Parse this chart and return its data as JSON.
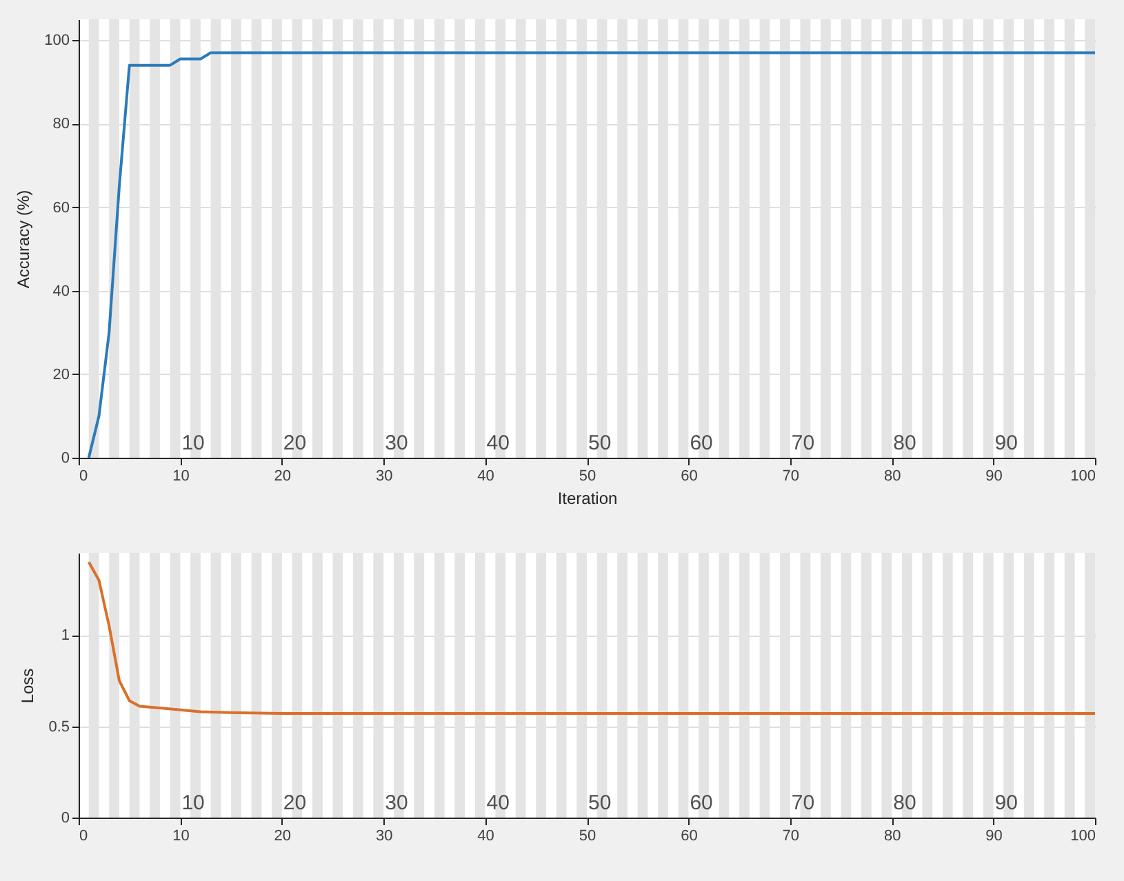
{
  "chart_data": [
    {
      "type": "line",
      "xlabel": "Iteration",
      "ylabel": "Accuracy (%)",
      "xlim": [
        0,
        100
      ],
      "xticks": [
        0,
        10,
        20,
        30,
        40,
        50,
        60,
        70,
        80,
        90,
        100
      ],
      "ylim": [
        0,
        105
      ],
      "yticks": [
        0,
        20,
        40,
        60,
        80,
        100
      ],
      "grid": "y",
      "series": [
        {
          "color": "#2b7bba",
          "x": [
            1,
            2,
            3,
            4,
            5,
            6,
            7,
            8,
            9,
            10,
            11,
            12,
            13,
            20,
            40,
            60,
            80,
            100
          ],
          "values": [
            0,
            10,
            30,
            65,
            94,
            94,
            94,
            94,
            94,
            95.5,
            95.5,
            95.5,
            97,
            97,
            97,
            97,
            97,
            97
          ]
        }
      ],
      "annotations": [
        {
          "text": "10",
          "x": 10,
          "y": 0
        },
        {
          "text": "20",
          "x": 20,
          "y": 0
        },
        {
          "text": "30",
          "x": 30,
          "y": 0
        },
        {
          "text": "40",
          "x": 40,
          "y": 0
        },
        {
          "text": "50",
          "x": 50,
          "y": 0
        },
        {
          "text": "60",
          "x": 60,
          "y": 0
        },
        {
          "text": "70",
          "x": 70,
          "y": 0
        },
        {
          "text": "80",
          "x": 80,
          "y": 0
        },
        {
          "text": "90",
          "x": 90,
          "y": 0
        }
      ],
      "bands": [
        {
          "axis": "x",
          "from": 1,
          "to": 2,
          "color": "#e4e4e4"
        },
        {
          "axis": "x",
          "from": 3,
          "to": 4,
          "color": "#e4e4e4"
        },
        {
          "axis": "x",
          "from": 5,
          "to": 6,
          "color": "#e4e4e4"
        },
        {
          "axis": "x",
          "from": 7,
          "to": 8,
          "color": "#e4e4e4"
        },
        {
          "axis": "x",
          "from": 9,
          "to": 10,
          "color": "#e4e4e4"
        },
        {
          "axis": "x",
          "from": 11,
          "to": 12,
          "color": "#e4e4e4"
        },
        {
          "axis": "x",
          "from": 13,
          "to": 14,
          "color": "#e4e4e4"
        },
        {
          "axis": "x",
          "from": 15,
          "to": 16,
          "color": "#e4e4e4"
        },
        {
          "axis": "x",
          "from": 17,
          "to": 18,
          "color": "#e4e4e4"
        },
        {
          "axis": "x",
          "from": 19,
          "to": 20,
          "color": "#e4e4e4"
        },
        {
          "axis": "x",
          "from": 21,
          "to": 22,
          "color": "#e4e4e4"
        },
        {
          "axis": "x",
          "from": 23,
          "to": 24,
          "color": "#e4e4e4"
        },
        {
          "axis": "x",
          "from": 25,
          "to": 26,
          "color": "#e4e4e4"
        },
        {
          "axis": "x",
          "from": 27,
          "to": 28,
          "color": "#e4e4e4"
        },
        {
          "axis": "x",
          "from": 29,
          "to": 30,
          "color": "#e4e4e4"
        },
        {
          "axis": "x",
          "from": 31,
          "to": 32,
          "color": "#e4e4e4"
        },
        {
          "axis": "x",
          "from": 33,
          "to": 34,
          "color": "#e4e4e4"
        },
        {
          "axis": "x",
          "from": 35,
          "to": 36,
          "color": "#e4e4e4"
        },
        {
          "axis": "x",
          "from": 37,
          "to": 38,
          "color": "#e4e4e4"
        },
        {
          "axis": "x",
          "from": 39,
          "to": 40,
          "color": "#e4e4e4"
        },
        {
          "axis": "x",
          "from": 41,
          "to": 42,
          "color": "#e4e4e4"
        },
        {
          "axis": "x",
          "from": 43,
          "to": 44,
          "color": "#e4e4e4"
        },
        {
          "axis": "x",
          "from": 45,
          "to": 46,
          "color": "#e4e4e4"
        },
        {
          "axis": "x",
          "from": 47,
          "to": 48,
          "color": "#e4e4e4"
        },
        {
          "axis": "x",
          "from": 49,
          "to": 50,
          "color": "#e4e4e4"
        },
        {
          "axis": "x",
          "from": 51,
          "to": 52,
          "color": "#e4e4e4"
        },
        {
          "axis": "x",
          "from": 53,
          "to": 54,
          "color": "#e4e4e4"
        },
        {
          "axis": "x",
          "from": 55,
          "to": 56,
          "color": "#e4e4e4"
        },
        {
          "axis": "x",
          "from": 57,
          "to": 58,
          "color": "#e4e4e4"
        },
        {
          "axis": "x",
          "from": 59,
          "to": 60,
          "color": "#e4e4e4"
        },
        {
          "axis": "x",
          "from": 61,
          "to": 62,
          "color": "#e4e4e4"
        },
        {
          "axis": "x",
          "from": 63,
          "to": 64,
          "color": "#e4e4e4"
        },
        {
          "axis": "x",
          "from": 65,
          "to": 66,
          "color": "#e4e4e4"
        },
        {
          "axis": "x",
          "from": 67,
          "to": 68,
          "color": "#e4e4e4"
        },
        {
          "axis": "x",
          "from": 69,
          "to": 70,
          "color": "#e4e4e4"
        },
        {
          "axis": "x",
          "from": 71,
          "to": 72,
          "color": "#e4e4e4"
        },
        {
          "axis": "x",
          "from": 73,
          "to": 74,
          "color": "#e4e4e4"
        },
        {
          "axis": "x",
          "from": 75,
          "to": 76,
          "color": "#e4e4e4"
        },
        {
          "axis": "x",
          "from": 77,
          "to": 78,
          "color": "#e4e4e4"
        },
        {
          "axis": "x",
          "from": 79,
          "to": 80,
          "color": "#e4e4e4"
        },
        {
          "axis": "x",
          "from": 81,
          "to": 82,
          "color": "#e4e4e4"
        },
        {
          "axis": "x",
          "from": 83,
          "to": 84,
          "color": "#e4e4e4"
        },
        {
          "axis": "x",
          "from": 85,
          "to": 86,
          "color": "#e4e4e4"
        },
        {
          "axis": "x",
          "from": 87,
          "to": 88,
          "color": "#e4e4e4"
        },
        {
          "axis": "x",
          "from": 89,
          "to": 90,
          "color": "#e4e4e4"
        },
        {
          "axis": "x",
          "from": 91,
          "to": 92,
          "color": "#e4e4e4"
        },
        {
          "axis": "x",
          "from": 93,
          "to": 94,
          "color": "#e4e4e4"
        },
        {
          "axis": "x",
          "from": 95,
          "to": 96,
          "color": "#e4e4e4"
        },
        {
          "axis": "x",
          "from": 97,
          "to": 98,
          "color": "#e4e4e4"
        },
        {
          "axis": "x",
          "from": 99,
          "to": 100,
          "color": "#e4e4e4"
        }
      ]
    },
    {
      "type": "line",
      "ylabel": "Loss",
      "xlim": [
        0,
        100
      ],
      "xticks": [
        0,
        10,
        20,
        30,
        40,
        50,
        60,
        70,
        80,
        90,
        100
      ],
      "ylim": [
        0,
        1.45
      ],
      "yticks": [
        0,
        0.5,
        1
      ],
      "grid": "y",
      "series": [
        {
          "color": "#d9702a",
          "x": [
            1,
            2,
            3,
            4,
            5,
            6,
            8,
            10,
            12,
            15,
            20,
            40,
            60,
            80,
            100
          ],
          "values": [
            1.4,
            1.3,
            1.05,
            0.75,
            0.64,
            0.61,
            0.6,
            0.59,
            0.58,
            0.575,
            0.57,
            0.57,
            0.57,
            0.57,
            0.57
          ]
        }
      ],
      "annotations": [
        {
          "text": "10",
          "x": 10,
          "y": 0
        },
        {
          "text": "20",
          "x": 20,
          "y": 0
        },
        {
          "text": "30",
          "x": 30,
          "y": 0
        },
        {
          "text": "40",
          "x": 40,
          "y": 0
        },
        {
          "text": "50",
          "x": 50,
          "y": 0
        },
        {
          "text": "60",
          "x": 60,
          "y": 0
        },
        {
          "text": "70",
          "x": 70,
          "y": 0
        },
        {
          "text": "80",
          "x": 80,
          "y": 0
        },
        {
          "text": "90",
          "x": 90,
          "y": 0
        }
      ],
      "bands": [
        {
          "axis": "x",
          "from": 1,
          "to": 2,
          "color": "#e4e4e4"
        },
        {
          "axis": "x",
          "from": 3,
          "to": 4,
          "color": "#e4e4e4"
        },
        {
          "axis": "x",
          "from": 5,
          "to": 6,
          "color": "#e4e4e4"
        },
        {
          "axis": "x",
          "from": 7,
          "to": 8,
          "color": "#e4e4e4"
        },
        {
          "axis": "x",
          "from": 9,
          "to": 10,
          "color": "#e4e4e4"
        },
        {
          "axis": "x",
          "from": 11,
          "to": 12,
          "color": "#e4e4e4"
        },
        {
          "axis": "x",
          "from": 13,
          "to": 14,
          "color": "#e4e4e4"
        },
        {
          "axis": "x",
          "from": 15,
          "to": 16,
          "color": "#e4e4e4"
        },
        {
          "axis": "x",
          "from": 17,
          "to": 18,
          "color": "#e4e4e4"
        },
        {
          "axis": "x",
          "from": 19,
          "to": 20,
          "color": "#e4e4e4"
        },
        {
          "axis": "x",
          "from": 21,
          "to": 22,
          "color": "#e4e4e4"
        },
        {
          "axis": "x",
          "from": 23,
          "to": 24,
          "color": "#e4e4e4"
        },
        {
          "axis": "x",
          "from": 25,
          "to": 26,
          "color": "#e4e4e4"
        },
        {
          "axis": "x",
          "from": 27,
          "to": 28,
          "color": "#e4e4e4"
        },
        {
          "axis": "x",
          "from": 29,
          "to": 30,
          "color": "#e4e4e4"
        },
        {
          "axis": "x",
          "from": 31,
          "to": 32,
          "color": "#e4e4e4"
        },
        {
          "axis": "x",
          "from": 33,
          "to": 34,
          "color": "#e4e4e4"
        },
        {
          "axis": "x",
          "from": 35,
          "to": 36,
          "color": "#e4e4e4"
        },
        {
          "axis": "x",
          "from": 37,
          "to": 38,
          "color": "#e4e4e4"
        },
        {
          "axis": "x",
          "from": 39,
          "to": 40,
          "color": "#e4e4e4"
        },
        {
          "axis": "x",
          "from": 41,
          "to": 42,
          "color": "#e4e4e4"
        },
        {
          "axis": "x",
          "from": 43,
          "to": 44,
          "color": "#e4e4e4"
        },
        {
          "axis": "x",
          "from": 45,
          "to": 46,
          "color": "#e4e4e4"
        },
        {
          "axis": "x",
          "from": 47,
          "to": 48,
          "color": "#e4e4e4"
        },
        {
          "axis": "x",
          "from": 49,
          "to": 50,
          "color": "#e4e4e4"
        },
        {
          "axis": "x",
          "from": 51,
          "to": 52,
          "color": "#e4e4e4"
        },
        {
          "axis": "x",
          "from": 53,
          "to": 54,
          "color": "#e4e4e4"
        },
        {
          "axis": "x",
          "from": 55,
          "to": 56,
          "color": "#e4e4e4"
        },
        {
          "axis": "x",
          "from": 57,
          "to": 58,
          "color": "#e4e4e4"
        },
        {
          "axis": "x",
          "from": 59,
          "to": 60,
          "color": "#e4e4e4"
        },
        {
          "axis": "x",
          "from": 61,
          "to": 62,
          "color": "#e4e4e4"
        },
        {
          "axis": "x",
          "from": 63,
          "to": 64,
          "color": "#e4e4e4"
        },
        {
          "axis": "x",
          "from": 65,
          "to": 66,
          "color": "#e4e4e4"
        },
        {
          "axis": "x",
          "from": 67,
          "to": 68,
          "color": "#e4e4e4"
        },
        {
          "axis": "x",
          "from": 69,
          "to": 70,
          "color": "#e4e4e4"
        },
        {
          "axis": "x",
          "from": 71,
          "to": 72,
          "color": "#e4e4e4"
        },
        {
          "axis": "x",
          "from": 73,
          "to": 74,
          "color": "#e4e4e4"
        },
        {
          "axis": "x",
          "from": 75,
          "to": 76,
          "color": "#e4e4e4"
        },
        {
          "axis": "x",
          "from": 77,
          "to": 78,
          "color": "#e4e4e4"
        },
        {
          "axis": "x",
          "from": 79,
          "to": 80,
          "color": "#e4e4e4"
        },
        {
          "axis": "x",
          "from": 81,
          "to": 82,
          "color": "#e4e4e4"
        },
        {
          "axis": "x",
          "from": 83,
          "to": 84,
          "color": "#e4e4e4"
        },
        {
          "axis": "x",
          "from": 85,
          "to": 86,
          "color": "#e4e4e4"
        },
        {
          "axis": "x",
          "from": 87,
          "to": 88,
          "color": "#e4e4e4"
        },
        {
          "axis": "x",
          "from": 89,
          "to": 90,
          "color": "#e4e4e4"
        },
        {
          "axis": "x",
          "from": 91,
          "to": 92,
          "color": "#e4e4e4"
        },
        {
          "axis": "x",
          "from": 93,
          "to": 94,
          "color": "#e4e4e4"
        },
        {
          "axis": "x",
          "from": 95,
          "to": 96,
          "color": "#e4e4e4"
        },
        {
          "axis": "x",
          "from": 97,
          "to": 98,
          "color": "#e4e4e4"
        },
        {
          "axis": "x",
          "from": 99,
          "to": 100,
          "color": "#e4e4e4"
        }
      ]
    }
  ]
}
